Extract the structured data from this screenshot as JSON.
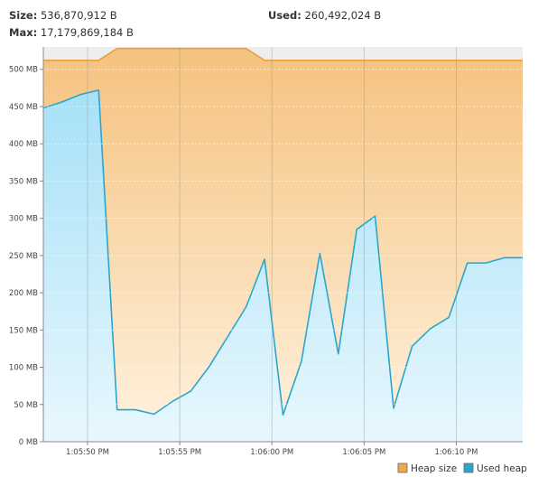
{
  "header": {
    "size_label": "Size:",
    "size_value": "536,870,912 B",
    "max_label": "Max:",
    "max_value": "17,179,869,184 B",
    "used_label": "Used:",
    "used_value": "260,492,024 B"
  },
  "chart_data": {
    "type": "area",
    "title": "",
    "xlabel": "",
    "ylabel": "",
    "ylim": [
      0,
      530
    ],
    "y_ticks": [
      0,
      50,
      100,
      150,
      200,
      250,
      300,
      350,
      400,
      450,
      500
    ],
    "y_tick_labels": [
      "0 MB",
      "50 MB",
      "100 MB",
      "150 MB",
      "200 MB",
      "250 MB",
      "300 MB",
      "350 MB",
      "400 MB",
      "450 MB",
      "500 MB"
    ],
    "xlim": [
      0,
      26
    ],
    "x_ticks": [
      2.4,
      7.4,
      12.4,
      17.4,
      22.4
    ],
    "x_tick_labels": [
      "1:05:50 PM",
      "1:05:55 PM",
      "1:06:00 PM",
      "1:06:05 PM",
      "1:06:10 PM"
    ],
    "grid": true,
    "legend_position": "bottom-right",
    "series": [
      {
        "name": "Heap size",
        "color": "#e8a040",
        "x": [
          0,
          1,
          2,
          3,
          4,
          5,
          6,
          7,
          8,
          9,
          10,
          11,
          12,
          13,
          14,
          15,
          16,
          17,
          18,
          19,
          20,
          21,
          22,
          23,
          24,
          25,
          26
        ],
        "values": [
          512,
          512,
          512,
          512,
          528,
          528,
          528,
          528,
          528,
          528,
          528,
          528,
          512,
          512,
          512,
          512,
          512,
          512,
          512,
          512,
          512,
          512,
          512,
          512,
          512,
          512,
          512
        ]
      },
      {
        "name": "Used heap",
        "color": "#2aa6cc",
        "x": [
          0,
          1,
          2,
          3,
          4,
          5,
          6,
          7,
          8,
          9,
          10,
          11,
          12,
          13,
          14,
          15,
          16,
          17,
          18,
          19,
          20,
          21,
          22,
          23,
          24,
          25,
          26
        ],
        "values": [
          448,
          456,
          466,
          472,
          43,
          43,
          37,
          54,
          68,
          101,
          141,
          181,
          245,
          36,
          108,
          253,
          118,
          285,
          303,
          45,
          128,
          152,
          167,
          240,
          240,
          247,
          247
        ]
      }
    ]
  }
}
